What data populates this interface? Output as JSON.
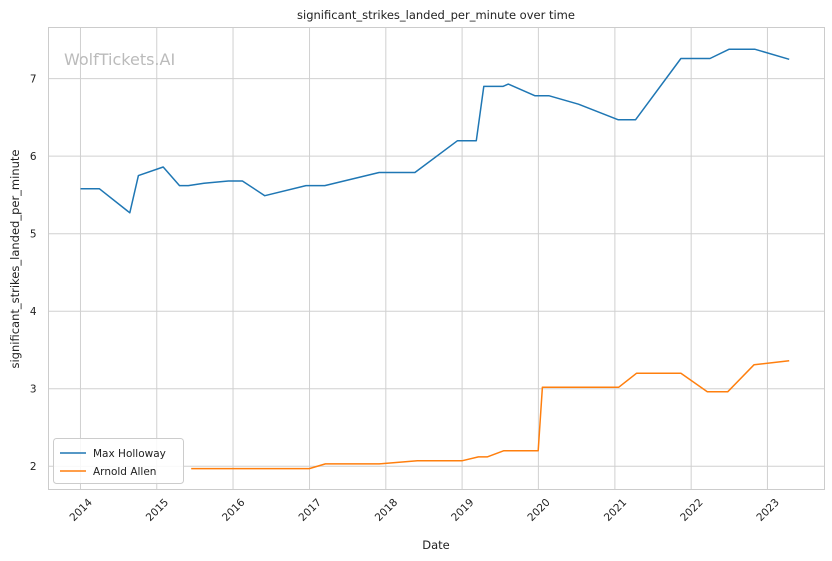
{
  "chart_data": {
    "type": "line",
    "title": "significant_strikes_landed_per_minute over time",
    "xlabel": "Date",
    "ylabel": "significant_strikes_landed_per_minute",
    "watermark": "WolfTickets.AI",
    "xlim": [
      "2013-08-01",
      "2023-10-01"
    ],
    "ylim": [
      1.7,
      7.66
    ],
    "x_ticks": [
      "2014",
      "2015",
      "2016",
      "2017",
      "2018",
      "2019",
      "2020",
      "2021",
      "2022",
      "2023"
    ],
    "y_ticks": [
      2,
      3,
      4,
      5,
      6,
      7
    ],
    "grid": true,
    "legend_position": "lower-left",
    "series": [
      {
        "name": "Max Holloway",
        "color": "#1f77b4",
        "points": [
          [
            "2014-01-01",
            5.58
          ],
          [
            "2014-04-01",
            5.58
          ],
          [
            "2014-08-25",
            5.27
          ],
          [
            "2014-10-05",
            5.75
          ],
          [
            "2015-02-01",
            5.86
          ],
          [
            "2015-04-20",
            5.62
          ],
          [
            "2015-06-01",
            5.62
          ],
          [
            "2015-08-15",
            5.65
          ],
          [
            "2015-12-10",
            5.68
          ],
          [
            "2016-02-15",
            5.68
          ],
          [
            "2016-06-01",
            5.49
          ],
          [
            "2016-12-15",
            5.62
          ],
          [
            "2017-03-15",
            5.62
          ],
          [
            "2017-11-30",
            5.79
          ],
          [
            "2018-05-20",
            5.79
          ],
          [
            "2018-12-10",
            6.2
          ],
          [
            "2019-03-10",
            6.2
          ],
          [
            "2019-04-15",
            6.9
          ],
          [
            "2019-07-15",
            6.9
          ],
          [
            "2019-08-10",
            6.93
          ],
          [
            "2019-12-15",
            6.78
          ],
          [
            "2020-02-20",
            6.78
          ],
          [
            "2020-07-11",
            6.67
          ],
          [
            "2021-01-16",
            6.47
          ],
          [
            "2021-04-10",
            6.47
          ],
          [
            "2021-11-13",
            7.26
          ],
          [
            "2022-04-01",
            7.26
          ],
          [
            "2022-07-02",
            7.38
          ],
          [
            "2022-11-01",
            7.38
          ],
          [
            "2023-04-15",
            7.25
          ]
        ]
      },
      {
        "name": "Arnold Allen",
        "color": "#ff7f0e",
        "points": [
          [
            "2015-06-15",
            1.97
          ],
          [
            "2016-12-31",
            1.97
          ],
          [
            "2017-03-18",
            2.03
          ],
          [
            "2017-12-01",
            2.03
          ],
          [
            "2018-06-01",
            2.07
          ],
          [
            "2018-12-31",
            2.07
          ],
          [
            "2019-03-20",
            2.12
          ],
          [
            "2019-05-01",
            2.12
          ],
          [
            "2019-07-20",
            2.2
          ],
          [
            "2019-12-31",
            2.2
          ],
          [
            "2020-01-20",
            3.02
          ],
          [
            "2021-01-20",
            3.02
          ],
          [
            "2021-04-15",
            3.2
          ],
          [
            "2021-11-13",
            3.2
          ],
          [
            "2022-03-19",
            2.96
          ],
          [
            "2022-06-25",
            2.96
          ],
          [
            "2022-10-29",
            3.31
          ],
          [
            "2023-04-15",
            3.36
          ]
        ]
      }
    ]
  }
}
